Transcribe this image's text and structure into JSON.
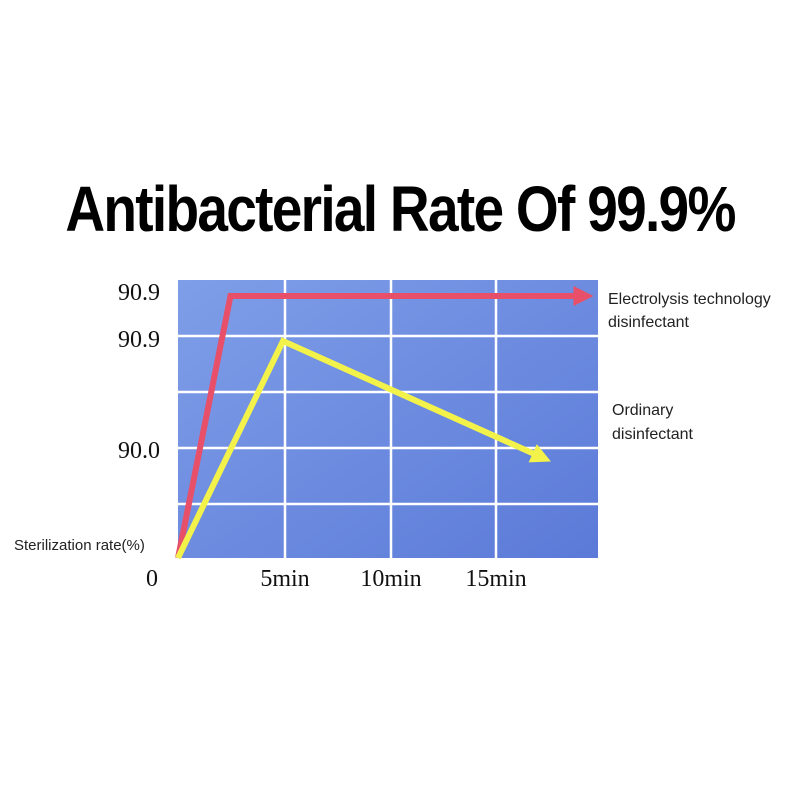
{
  "chart_data": {
    "type": "line",
    "title": "Antibacterial Rate Of 99.9%",
    "xlabel": "",
    "ylabel": "Sterilization rate(%)",
    "origin_label": "0",
    "x_tick_labels": [
      "5min",
      "10min",
      "15min"
    ],
    "y_tick_labels": [
      "90.9",
      "90.9",
      "90.0"
    ],
    "grid": true,
    "background_gradient": [
      "#7f9ee8",
      "#5b7ad8"
    ],
    "series": [
      {
        "name": "Electrolysis technology disinfectant",
        "legend_lines": [
          "Electrolysis technology",
          "disinfectant"
        ],
        "color": "#e8506a",
        "points": [
          [
            0,
            0
          ],
          [
            2.5,
            99.9
          ],
          [
            19.5,
            99.9
          ]
        ]
      },
      {
        "name": "Ordinary disinfectant",
        "legend_lines": [
          "Ordinary",
          "disinfectant"
        ],
        "color": "#f2f24a",
        "points": [
          [
            0,
            0
          ],
          [
            5,
            90.9
          ],
          [
            17.5,
            81
          ]
        ]
      }
    ]
  }
}
